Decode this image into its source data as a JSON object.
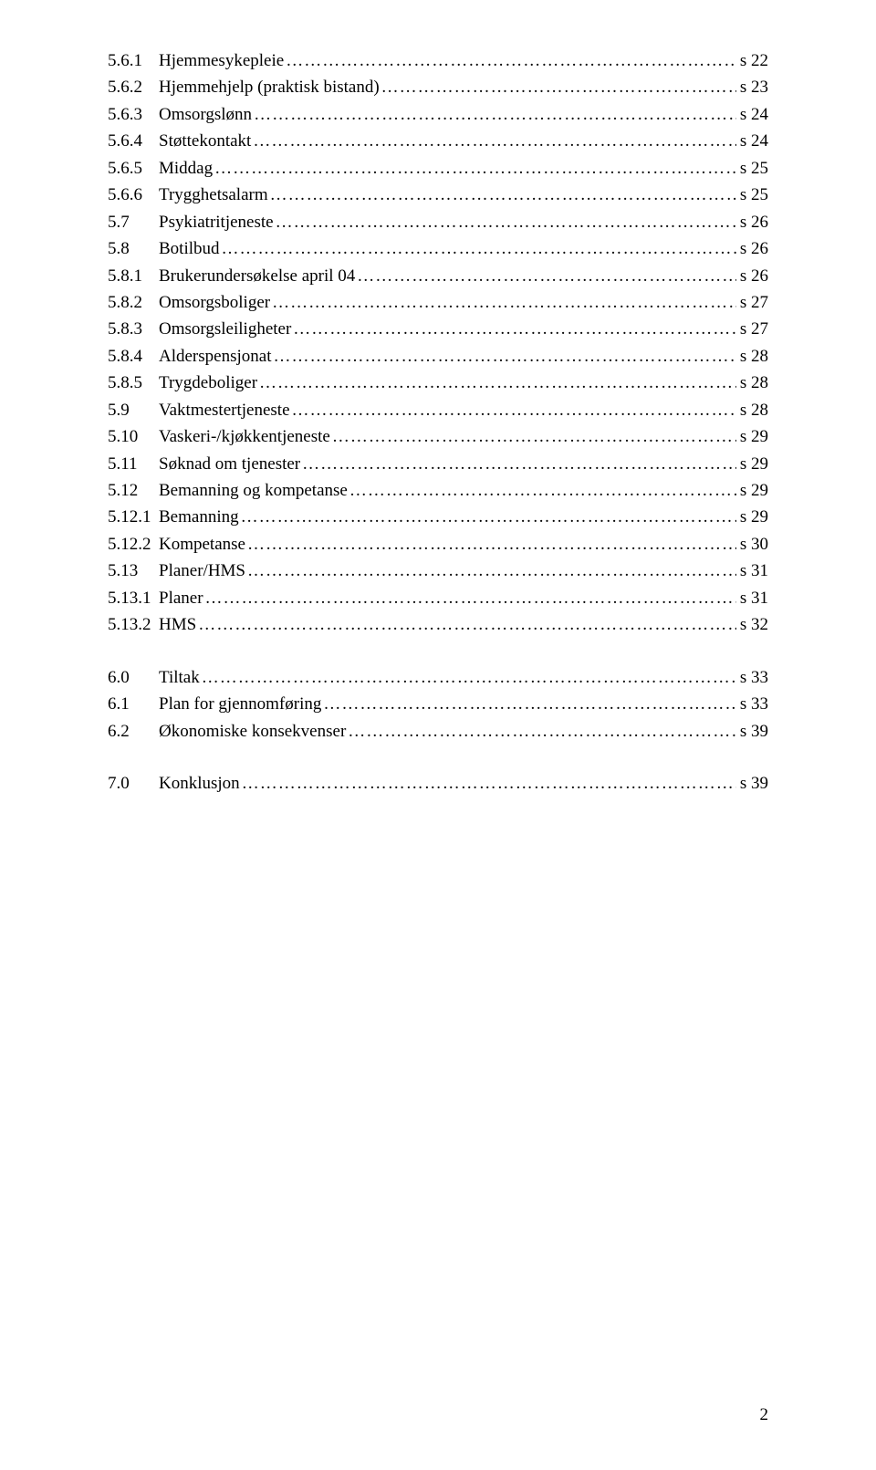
{
  "colors": {
    "text": "#000000",
    "background": "#ffffff"
  },
  "typography": {
    "font_family": "Times New Roman",
    "font_size_pt": 14,
    "line_height": 1.55
  },
  "leader": {
    "dots": "…",
    "double_dots": ".."
  },
  "sections": [
    {
      "entries": [
        {
          "num": "5.6.1",
          "title": "Hjemmesykepleie",
          "leader": "dots",
          "page": "s 22"
        },
        {
          "num": "5.6.2",
          "title": "Hjemmehjelp (praktisk bistand)",
          "leader": "dots_dd",
          "page": "s 23"
        },
        {
          "num": "5.6.3",
          "title": "Omsorgslønn",
          "leader": "dots",
          "page": "s 24"
        },
        {
          "num": "5.6.4",
          "title": "Støttekontakt",
          "leader": "dots",
          "page": "s 24"
        },
        {
          "num": "5.6.5",
          "title": "Middag",
          "leader": "dots",
          "page": "s 25"
        },
        {
          "num": "5.6.6",
          "title": "Trygghetsalarm",
          "leader": "dots_dd",
          "page": "s 25"
        },
        {
          "num": "5.7",
          "title": "Psykiatritjeneste",
          "leader": "dots_dd",
          "page": "s 26"
        },
        {
          "num": "5.8",
          "title": "Botilbud",
          "leader": "dots_dot",
          "page": "s 26"
        },
        {
          "num": "5.8.1",
          "title": "Brukerundersøkelse april 04",
          "leader": "dots_dd",
          "page": "s 26"
        },
        {
          "num": "5.8.2",
          "title": "Omsorgsboliger",
          "leader": "dots_dd",
          "page": "s 27"
        },
        {
          "num": "5.8.3",
          "title": "Omsorgsleiligheter",
          "leader": "dots_dot",
          "page": "s 27"
        },
        {
          "num": "5.8.4",
          "title": "Alderspensjonat",
          "leader": "dots_dot",
          "page": "s 28"
        },
        {
          "num": "5.8.5",
          "title": "Trygdeboliger",
          "leader": "dots",
          "page": "s 28"
        },
        {
          "num": "5.9",
          "title": "Vaktmestertjeneste",
          "leader": "dots_dot",
          "page": "s 28"
        },
        {
          "num": "5.10",
          "title": "Vaskeri-/kjøkkentjeneste",
          "leader": "dots",
          "page": "s 29"
        },
        {
          "num": "5.11",
          "title": "Søknad om tjenester",
          "leader": "dots_ddd",
          "page": "s 29"
        },
        {
          "num": "5.12",
          "title": "Bemanning og kompetanse",
          "leader": "dots",
          "page": "s 29"
        },
        {
          "num": "5.12.1",
          "title": "Bemanning",
          "leader": "dots_dot",
          "page": "s 29"
        },
        {
          "num": "5.12.2",
          "title": "Kompetanse",
          "leader": "dots",
          "page": "s 30"
        },
        {
          "num": "5.13",
          "title": "Planer/HMS",
          "leader": "dots",
          "page": "s 31"
        },
        {
          "num": "5.13.1",
          "title": "Planer",
          "leader": "dots_dot",
          "page": "s 31"
        },
        {
          "num": "5.13.2",
          "title": "HMS",
          "leader": "dots_dd",
          "page": "s 32"
        }
      ]
    },
    {
      "entries": [
        {
          "num": "6.0",
          "title": "Tiltak",
          "leader": "dots_dot",
          "page": "s 33"
        },
        {
          "num": "6.1",
          "title": "Plan for gjennomføring",
          "leader": "dots_dot",
          "page": "s 33"
        },
        {
          "num": "6.2",
          "title": "Økonomiske konsekvenser",
          "leader": "dots_dot",
          "page": "s 39"
        }
      ]
    },
    {
      "entries": [
        {
          "num": "7.0",
          "title": "Konklusjon",
          "leader": "dots_dd",
          "page": "s 39"
        }
      ]
    }
  ],
  "footer": {
    "page_number": "2"
  }
}
